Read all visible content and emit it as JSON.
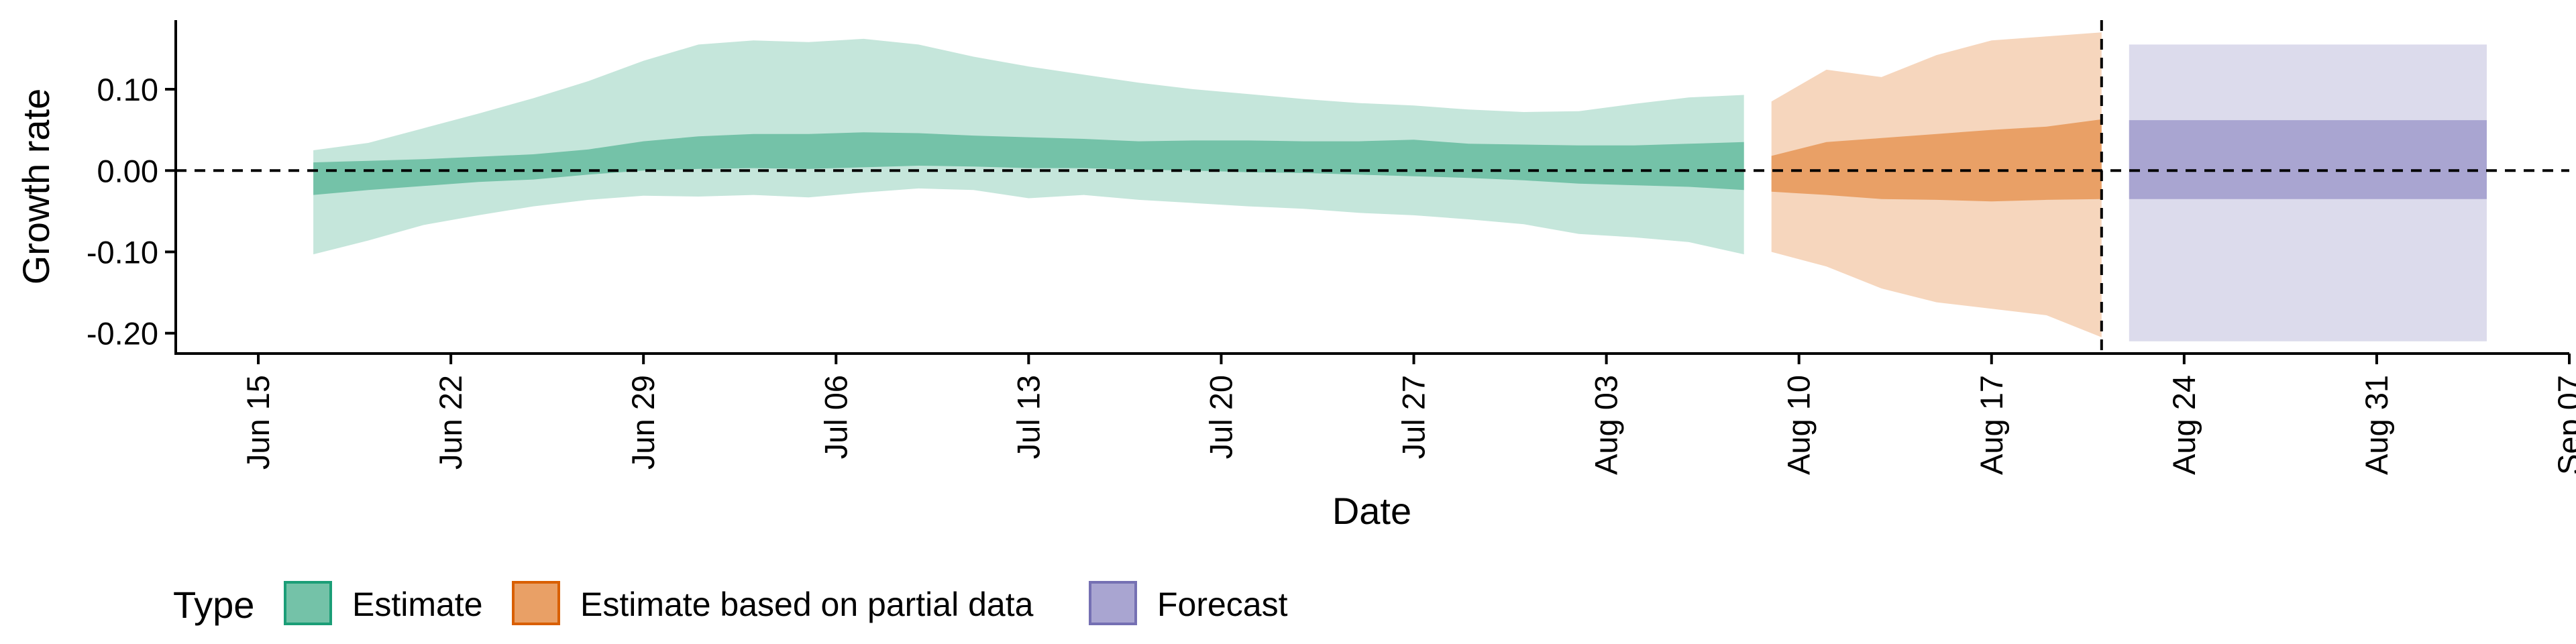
{
  "chart_data": {
    "type": "area",
    "xlabel": "Date",
    "ylabel": "Growth rate",
    "x_axis": {
      "min": "2020-06-12",
      "max": "2020-09-07",
      "ticks": [
        {
          "date": "2020-06-15",
          "label": "Jun 15"
        },
        {
          "date": "2020-06-22",
          "label": "Jun 22"
        },
        {
          "date": "2020-06-29",
          "label": "Jun 29"
        },
        {
          "date": "2020-07-06",
          "label": "Jul 06"
        },
        {
          "date": "2020-07-13",
          "label": "Jul 13"
        },
        {
          "date": "2020-07-20",
          "label": "Jul 20"
        },
        {
          "date": "2020-07-27",
          "label": "Jul 27"
        },
        {
          "date": "2020-08-03",
          "label": "Aug 03"
        },
        {
          "date": "2020-08-10",
          "label": "Aug 10"
        },
        {
          "date": "2020-08-17",
          "label": "Aug 17"
        },
        {
          "date": "2020-08-24",
          "label": "Aug 24"
        },
        {
          "date": "2020-08-31",
          "label": "Aug 31"
        },
        {
          "date": "2020-09-07",
          "label": "Sep 07"
        }
      ]
    },
    "y_axis": {
      "min": -0.225,
      "max": 0.185,
      "ticks": [
        {
          "value": -0.2,
          "label": "-0.20"
        },
        {
          "value": -0.1,
          "label": "-0.10"
        },
        {
          "value": 0.0,
          "label": "0.00"
        },
        {
          "value": 0.1,
          "label": "0.10"
        }
      ]
    },
    "reference_lines": {
      "horizontal_y": 0.0,
      "vertical_date": "2020-08-21"
    },
    "legend": {
      "title": "Type",
      "position": "bottom-left",
      "entries": [
        {
          "label": "Estimate",
          "fill": "#74C2A8",
          "stroke": "#1B9E77"
        },
        {
          "label": "Estimate based on partial data",
          "fill": "#E9A066",
          "stroke": "#D95F02"
        },
        {
          "label": "Forecast",
          "fill": "#A9A5D1",
          "stroke": "#7570B3"
        }
      ]
    },
    "series": [
      {
        "name": "Estimate",
        "outer_color": "#C5E6DB",
        "inner_color": "#74C2A8",
        "points": [
          {
            "date": "2020-06-17",
            "lo90": -0.103,
            "lo50": -0.03,
            "hi50": 0.01,
            "hi90": 0.025
          },
          {
            "date": "2020-06-19",
            "lo90": -0.086,
            "lo50": -0.024,
            "hi50": 0.012,
            "hi90": 0.034
          },
          {
            "date": "2020-06-21",
            "lo90": -0.067,
            "lo50": -0.019,
            "hi50": 0.014,
            "hi90": 0.052
          },
          {
            "date": "2020-06-23",
            "lo90": -0.055,
            "lo50": -0.014,
            "hi50": 0.017,
            "hi90": 0.07
          },
          {
            "date": "2020-06-25",
            "lo90": -0.044,
            "lo50": -0.011,
            "hi50": 0.02,
            "hi90": 0.089
          },
          {
            "date": "2020-06-27",
            "lo90": -0.036,
            "lo50": -0.005,
            "hi50": 0.026,
            "hi90": 0.11
          },
          {
            "date": "2020-06-29",
            "lo90": -0.031,
            "lo50": 0.0,
            "hi50": 0.036,
            "hi90": 0.135
          },
          {
            "date": "2020-07-01",
            "lo90": -0.032,
            "lo50": 0.002,
            "hi50": 0.042,
            "hi90": 0.155
          },
          {
            "date": "2020-07-03",
            "lo90": -0.03,
            "lo50": 0.003,
            "hi50": 0.045,
            "hi90": 0.16
          },
          {
            "date": "2020-07-05",
            "lo90": -0.033,
            "lo50": 0.002,
            "hi50": 0.045,
            "hi90": 0.158
          },
          {
            "date": "2020-07-07",
            "lo90": -0.027,
            "lo50": 0.004,
            "hi50": 0.047,
            "hi90": 0.162
          },
          {
            "date": "2020-07-09",
            "lo90": -0.022,
            "lo50": 0.006,
            "hi50": 0.046,
            "hi90": 0.155
          },
          {
            "date": "2020-07-11",
            "lo90": -0.024,
            "lo50": 0.005,
            "hi50": 0.043,
            "hi90": 0.14
          },
          {
            "date": "2020-07-13",
            "lo90": -0.034,
            "lo50": 0.003,
            "hi50": 0.041,
            "hi90": 0.128
          },
          {
            "date": "2020-07-15",
            "lo90": -0.03,
            "lo50": 0.003,
            "hi50": 0.039,
            "hi90": 0.118
          },
          {
            "date": "2020-07-17",
            "lo90": -0.036,
            "lo50": 0.001,
            "hi50": 0.036,
            "hi90": 0.108
          },
          {
            "date": "2020-07-19",
            "lo90": -0.04,
            "lo50": 0.0,
            "hi50": 0.037,
            "hi90": 0.1
          },
          {
            "date": "2020-07-21",
            "lo90": -0.044,
            "lo50": -0.002,
            "hi50": 0.037,
            "hi90": 0.094
          },
          {
            "date": "2020-07-23",
            "lo90": -0.047,
            "lo50": -0.003,
            "hi50": 0.036,
            "hi90": 0.088
          },
          {
            "date": "2020-07-25",
            "lo90": -0.052,
            "lo50": -0.005,
            "hi50": 0.036,
            "hi90": 0.083
          },
          {
            "date": "2020-07-27",
            "lo90": -0.055,
            "lo50": -0.007,
            "hi50": 0.038,
            "hi90": 0.08
          },
          {
            "date": "2020-07-29",
            "lo90": -0.06,
            "lo50": -0.009,
            "hi50": 0.033,
            "hi90": 0.075
          },
          {
            "date": "2020-07-31",
            "lo90": -0.066,
            "lo50": -0.012,
            "hi50": 0.032,
            "hi90": 0.072
          },
          {
            "date": "2020-08-02",
            "lo90": -0.078,
            "lo50": -0.016,
            "hi50": 0.031,
            "hi90": 0.073
          },
          {
            "date": "2020-08-04",
            "lo90": -0.082,
            "lo50": -0.018,
            "hi50": 0.031,
            "hi90": 0.082
          },
          {
            "date": "2020-08-06",
            "lo90": -0.088,
            "lo50": -0.02,
            "hi50": 0.033,
            "hi90": 0.09
          },
          {
            "date": "2020-08-08",
            "lo90": -0.103,
            "lo50": -0.024,
            "hi50": 0.035,
            "hi90": 0.093
          }
        ]
      },
      {
        "name": "Estimate based on partial data",
        "outer_color": "#F6D6BD",
        "inner_color": "#E9A066",
        "points": [
          {
            "date": "2020-08-09",
            "lo90": -0.1,
            "lo50": -0.026,
            "hi50": 0.018,
            "hi90": 0.085
          },
          {
            "date": "2020-08-11",
            "lo90": -0.118,
            "lo50": -0.03,
            "hi50": 0.035,
            "hi90": 0.124
          },
          {
            "date": "2020-08-13",
            "lo90": -0.145,
            "lo50": -0.035,
            "hi50": 0.04,
            "hi90": 0.115
          },
          {
            "date": "2020-08-15",
            "lo90": -0.162,
            "lo50": -0.036,
            "hi50": 0.045,
            "hi90": 0.142
          },
          {
            "date": "2020-08-17",
            "lo90": -0.17,
            "lo50": -0.038,
            "hi50": 0.05,
            "hi90": 0.16
          },
          {
            "date": "2020-08-19",
            "lo90": -0.178,
            "lo50": -0.036,
            "hi50": 0.054,
            "hi90": 0.165
          },
          {
            "date": "2020-08-21",
            "lo90": -0.205,
            "lo50": -0.035,
            "hi50": 0.063,
            "hi90": 0.17
          }
        ]
      },
      {
        "name": "Forecast",
        "outer_color": "#DCDBEC",
        "inner_color": "#A9A5D1",
        "points": [
          {
            "date": "2020-08-22",
            "lo90": -0.21,
            "lo50": -0.035,
            "hi50": 0.062,
            "hi90": 0.155
          },
          {
            "date": "2020-09-04",
            "lo90": -0.21,
            "lo50": -0.035,
            "hi50": 0.062,
            "hi90": 0.155
          }
        ]
      }
    ]
  }
}
